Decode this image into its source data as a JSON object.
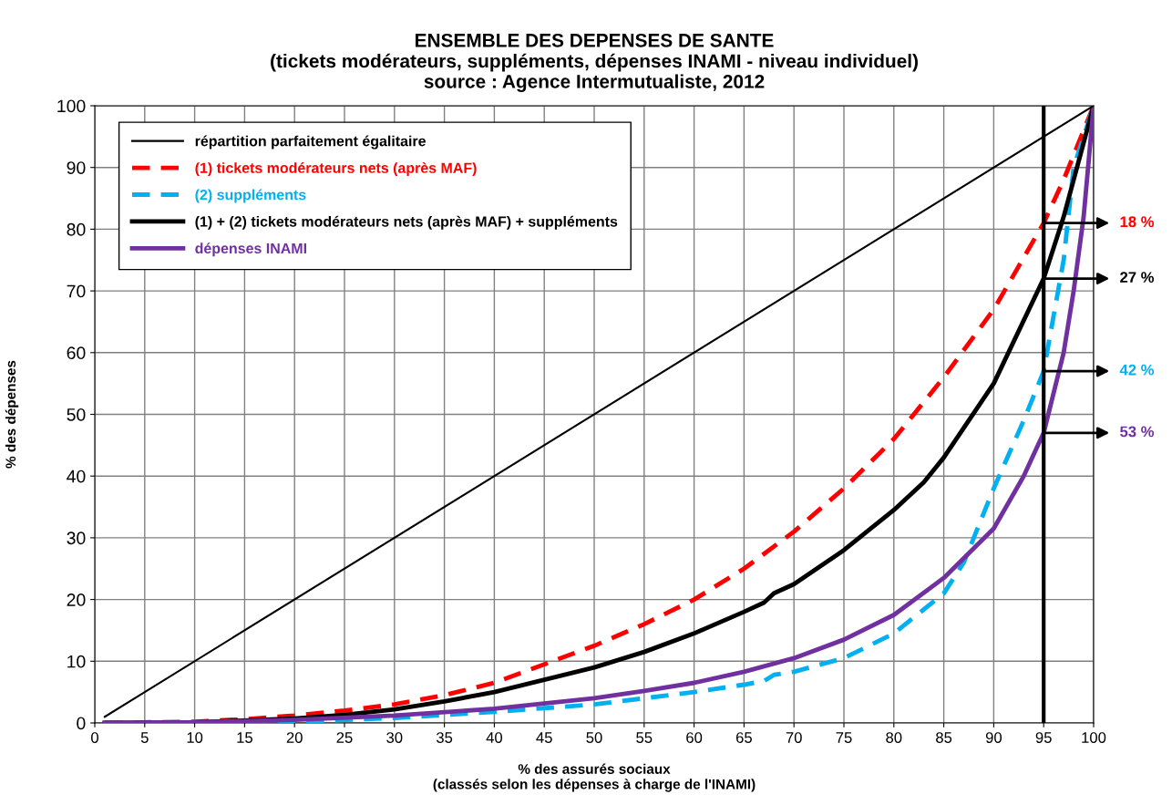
{
  "chart_data": {
    "type": "line",
    "title": "ENSEMBLE DES DEPENSES DE SANTE\n(tickets modérateurs, suppléments, dépenses INAMI - niveau individuel)\nsource : Agence Intermutualiste, 2012",
    "xlabel": "% des assurés sociaux\n(classés selon les dépenses à charge de l'INAMI)",
    "ylabel": "% des dépenses",
    "series": [
      {
        "name": "répartition parfaitement égalitaire",
        "color": "#000000",
        "line_style": "solid",
        "x": [
          1,
          100
        ],
        "values": [
          1,
          100
        ]
      },
      {
        "name": "(1) tickets modérateurs nets (après MAF)",
        "color": "#ff0000",
        "line_style": "dashed",
        "x": [
          1,
          10,
          15,
          20,
          25,
          30,
          35,
          40,
          45,
          50,
          55,
          60,
          65,
          70,
          75,
          80,
          85,
          90,
          95,
          97,
          100
        ],
        "values": [
          0,
          0.2,
          0.6,
          1.2,
          2,
          3,
          4.5,
          6.5,
          9.5,
          12.5,
          16,
          20,
          25,
          31,
          38,
          46,
          56,
          67,
          81,
          88,
          100
        ]
      },
      {
        "name": "(2) suppléments",
        "color": "#00b0f0",
        "line_style": "dashed",
        "x": [
          1,
          20,
          30,
          40,
          50,
          55,
          60,
          65,
          67,
          68,
          70,
          75,
          80,
          85,
          87,
          90,
          93,
          95,
          97,
          98,
          100
        ],
        "values": [
          0,
          0.2,
          0.8,
          1.8,
          3,
          4,
          5,
          6.2,
          6.8,
          7.8,
          8.3,
          10.5,
          14.5,
          21,
          26,
          38,
          49,
          57,
          75,
          90,
          100
        ]
      },
      {
        "name": "(1) + (2) tickets modérateurs nets (après MAF) + suppléments",
        "color": "#000000",
        "line_style": "solid",
        "x": [
          1,
          10,
          20,
          25,
          30,
          35,
          40,
          45,
          50,
          55,
          60,
          65,
          67,
          68,
          70,
          75,
          80,
          83,
          85,
          90,
          95,
          97,
          100
        ],
        "values": [
          0,
          0.1,
          0.7,
          1.3,
          2.2,
          3.5,
          5,
          7,
          9,
          11.5,
          14.5,
          18,
          19.5,
          21,
          22.5,
          28,
          34.5,
          39,
          43,
          55,
          72,
          82,
          100
        ]
      },
      {
        "name": "dépenses INAMI",
        "color": "#7030a0",
        "line_style": "solid",
        "x": [
          1,
          10,
          20,
          30,
          40,
          50,
          55,
          60,
          65,
          70,
          75,
          80,
          85,
          90,
          93,
          95,
          97,
          98,
          99,
          100
        ],
        "values": [
          0,
          0.1,
          0.5,
          1.2,
          2.3,
          4,
          5.2,
          6.5,
          8.3,
          10.5,
          13.5,
          17.5,
          23.5,
          31.5,
          40,
          47,
          60,
          70,
          82,
          100
        ]
      }
    ],
    "xlim": [
      0,
      100
    ],
    "xticks": [
      0,
      5,
      10,
      15,
      20,
      25,
      30,
      35,
      40,
      45,
      50,
      55,
      60,
      65,
      70,
      75,
      80,
      85,
      90,
      95,
      100
    ],
    "ylim": [
      0,
      100
    ],
    "yticks": [
      0,
      10,
      20,
      30,
      40,
      50,
      60,
      70,
      80,
      90,
      100
    ],
    "ref_lines": [
      {
        "axis": "x",
        "value": 95,
        "color": "#000000"
      }
    ],
    "annotations": [
      "18 %",
      "27 %",
      "42 %",
      "53 %"
    ],
    "grid": true,
    "legend": "top left",
    "marker": "none"
  }
}
